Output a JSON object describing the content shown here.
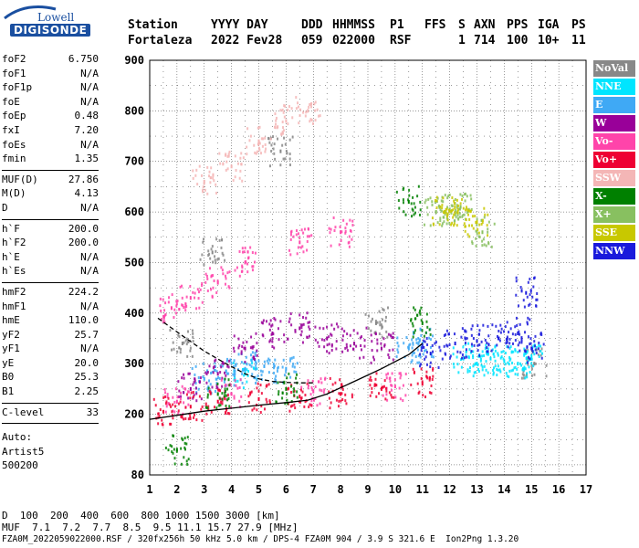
{
  "logo": {
    "line1": "Lowell",
    "line2": "DIGISONDE",
    "color": "#1a4fa0"
  },
  "header": {
    "labels": [
      "Station",
      "YYYY DAY",
      "DDD",
      "HHMMSS",
      "P1",
      "FFS",
      "S",
      "AXN",
      "PPS",
      "IGA",
      "PS"
    ],
    "values": [
      "Fortaleza",
      "2022 Fev28",
      "059",
      "022000",
      "RSF",
      "1",
      "714",
      "100",
      "10+",
      "11"
    ]
  },
  "params": {
    "group1": [
      {
        "name": "foF2",
        "value": "6.750"
      },
      {
        "name": "foF1",
        "value": "N/A"
      },
      {
        "name": "foF1p",
        "value": "N/A"
      },
      {
        "name": "foE",
        "value": "N/A"
      },
      {
        "name": "foEp",
        "value": "0.48"
      },
      {
        "name": "fxI",
        "value": "7.20"
      },
      {
        "name": "foEs",
        "value": "N/A"
      },
      {
        "name": "fmin",
        "value": "1.35"
      }
    ],
    "group2": [
      {
        "name": "MUF(D)",
        "value": "27.86"
      },
      {
        "name": "M(D)",
        "value": "4.13"
      },
      {
        "name": "D",
        "value": "N/A"
      }
    ],
    "group3": [
      {
        "name": "h`F",
        "value": "200.0"
      },
      {
        "name": "h`F2",
        "value": "200.0"
      },
      {
        "name": "h`E",
        "value": "N/A"
      },
      {
        "name": "h`Es",
        "value": "N/A"
      }
    ],
    "group4": [
      {
        "name": "hmF2",
        "value": "224.2"
      },
      {
        "name": "hmF1",
        "value": "N/A"
      },
      {
        "name": "hmE",
        "value": "110.0"
      },
      {
        "name": "yF2",
        "value": "25.7"
      },
      {
        "name": "yF1",
        "value": "N/A"
      },
      {
        "name": "yE",
        "value": "20.0"
      },
      {
        "name": "B0",
        "value": "25.3"
      },
      {
        "name": "B1",
        "value": "2.25"
      }
    ],
    "group5": [
      {
        "name": "C-level",
        "value": "33"
      }
    ]
  },
  "auto": [
    "Auto:",
    "Artist5",
    "500200"
  ],
  "legend": [
    {
      "label": "NoVal",
      "color": "#888888"
    },
    {
      "label": "NNE",
      "color": "#00e5ff"
    },
    {
      "label": "E",
      "color": "#3fa9f5"
    },
    {
      "label": "W",
      "color": "#990099"
    },
    {
      "label": "Vo-",
      "color": "#ff44aa"
    },
    {
      "label": "Vo+",
      "color": "#ee0033"
    },
    {
      "label": "SSW",
      "color": "#f4b6b6"
    },
    {
      "label": "X-",
      "color": "#008000"
    },
    {
      "label": "X+",
      "color": "#88c060"
    },
    {
      "label": "SSE",
      "color": "#c8c800"
    },
    {
      "label": "NNW",
      "color": "#1a1adc"
    }
  ],
  "muf_table": {
    "d_label": "D",
    "d_values": "  100  200  400  600  800 1000 1500 3000 [km]",
    "m_label": "MUF",
    "m_values": "  7.1  7.2  7.7  8.5  9.5 11.1 15.7 27.9 [MHz]"
  },
  "footer": "FZA0M_2022059022000.RSF / 320fx256h 50 kHz 5.0 km / DPS-4 FZA0M 904 / 3.9 S 321.6 E  Ion2Png 1.3.20",
  "chart_data": {
    "type": "scatter",
    "title": "",
    "xlabel": "",
    "ylabel": "",
    "xlim": [
      1,
      17
    ],
    "ylim": [
      80,
      900
    ],
    "x_ticks": [
      1,
      2,
      3,
      4,
      5,
      6,
      7,
      8,
      9,
      10,
      11,
      12,
      13,
      14,
      15,
      16,
      17
    ],
    "y_ticks": [
      80,
      200,
      300,
      400,
      500,
      600,
      700,
      800,
      900
    ],
    "grid": true,
    "legend_placement": "right",
    "series": [
      {
        "name": "NoVal",
        "points": [
          [
            2.2,
            340
          ],
          [
            3.3,
            520
          ],
          [
            5.8,
            720
          ],
          [
            9.3,
            380
          ],
          [
            15.1,
            300
          ]
        ]
      },
      {
        "name": "NNE",
        "points": [
          [
            13.0,
            300
          ],
          [
            13.5,
            310
          ],
          [
            14.0,
            305
          ],
          [
            14.5,
            300
          ],
          [
            15.0,
            315
          ],
          [
            12.5,
            310
          ],
          [
            4.5,
            280
          ]
        ]
      },
      {
        "name": "E",
        "points": [
          [
            3.0,
            270
          ],
          [
            3.8,
            285
          ],
          [
            4.5,
            290
          ],
          [
            5.2,
            295
          ],
          [
            6.0,
            290
          ],
          [
            10.5,
            330
          ],
          [
            11.0,
            340
          ]
        ]
      },
      {
        "name": "W",
        "points": [
          [
            2.5,
            250
          ],
          [
            3.5,
            280
          ],
          [
            4.5,
            330
          ],
          [
            5.5,
            360
          ],
          [
            6.5,
            370
          ],
          [
            7.5,
            350
          ],
          [
            8.5,
            340
          ],
          [
            9.5,
            330
          ]
        ]
      },
      {
        "name": "Vo-",
        "points": [
          [
            1.8,
            410
          ],
          [
            2.5,
            430
          ],
          [
            3.5,
            460
          ],
          [
            4.5,
            500
          ],
          [
            6.5,
            540
          ],
          [
            8.0,
            560
          ],
          [
            2.0,
            225
          ],
          [
            4.0,
            240
          ],
          [
            7.0,
            245
          ],
          [
            10.0,
            255
          ]
        ]
      },
      {
        "name": "Vo+",
        "points": [
          [
            1.5,
            205
          ],
          [
            2.5,
            215
          ],
          [
            3.5,
            225
          ],
          [
            5.0,
            230
          ],
          [
            6.5,
            235
          ],
          [
            8.0,
            240
          ],
          [
            9.5,
            250
          ],
          [
            11.0,
            260
          ]
        ]
      },
      {
        "name": "SSW",
        "points": [
          [
            3.0,
            660
          ],
          [
            4.0,
            690
          ],
          [
            5.0,
            740
          ],
          [
            6.0,
            780
          ],
          [
            6.8,
            800
          ]
        ]
      },
      {
        "name": "X-",
        "points": [
          [
            2.0,
            130
          ],
          [
            3.5,
            240
          ],
          [
            6.0,
            250
          ],
          [
            10.5,
            620
          ],
          [
            11.0,
            380
          ]
        ]
      },
      {
        "name": "X+",
        "points": [
          [
            11.5,
            600
          ],
          [
            12.0,
            605
          ],
          [
            12.4,
            610
          ],
          [
            13.2,
            560
          ]
        ]
      },
      {
        "name": "SSE",
        "points": [
          [
            11.8,
            600
          ],
          [
            12.3,
            600
          ],
          [
            13.0,
            580
          ]
        ]
      },
      {
        "name": "NNW",
        "points": [
          [
            12.2,
            340
          ],
          [
            13.0,
            345
          ],
          [
            13.8,
            350
          ],
          [
            14.5,
            360
          ],
          [
            15.0,
            330
          ],
          [
            11.3,
            320
          ],
          [
            14.8,
            440
          ]
        ]
      }
    ],
    "traces": [
      {
        "name": "profile-solid",
        "x": [
          1.0,
          2.0,
          3.0,
          4.0,
          5.0,
          6.0,
          6.8,
          7.5,
          8.5,
          9.5,
          10.5,
          11.0
        ],
        "y": [
          190,
          198,
          206,
          212,
          218,
          223,
          228,
          240,
          265,
          290,
          318,
          340
        ]
      },
      {
        "name": "profile-dashed",
        "x": [
          1.3,
          2.2,
          3.0,
          3.8,
          4.5,
          5.0,
          5.5,
          6.0,
          6.5,
          7.0
        ],
        "y": [
          390,
          355,
          325,
          300,
          280,
          270,
          265,
          263,
          262,
          262
        ]
      }
    ]
  }
}
